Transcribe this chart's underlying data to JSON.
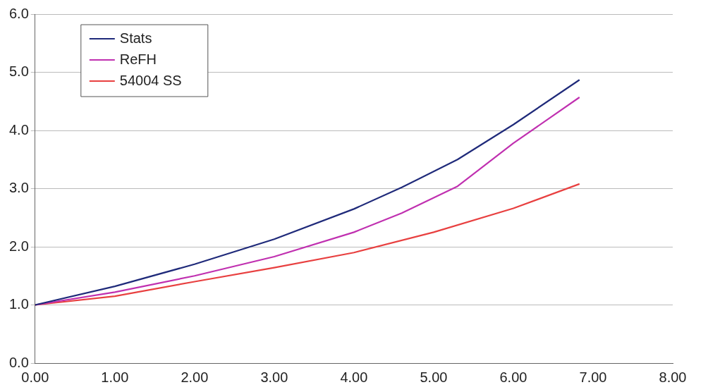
{
  "chart_data": {
    "type": "line",
    "xlim": [
      0,
      8
    ],
    "xticks": [
      {
        "value": 0,
        "label": "0.00"
      },
      {
        "value": 1,
        "label": "1.00"
      },
      {
        "value": 2,
        "label": "2.00"
      },
      {
        "value": 3,
        "label": "3.00"
      },
      {
        "value": 4,
        "label": "4.00"
      },
      {
        "value": 5,
        "label": "5.00"
      },
      {
        "value": 6,
        "label": "6.00"
      },
      {
        "value": 7,
        "label": "7.00"
      },
      {
        "value": 8,
        "label": "8.00"
      }
    ],
    "ylim": [
      0,
      6
    ],
    "yticks": [
      {
        "value": 0,
        "label": "0.0"
      },
      {
        "value": 1,
        "label": "1.0"
      },
      {
        "value": 2,
        "label": "2.0"
      },
      {
        "value": 3,
        "label": "3.0"
      },
      {
        "value": 4,
        "label": "4.0"
      },
      {
        "value": 5,
        "label": "5.0"
      },
      {
        "value": 6,
        "label": "6.0"
      }
    ],
    "grid": "y",
    "legend": "top left",
    "marker": "none",
    "line_style": "solid",
    "series": [
      {
        "name": "Stats",
        "color": "#1f2a7a",
        "x": [
          0,
          1,
          2,
          3,
          4,
          4.6,
          5.3,
          6,
          6.83
        ],
        "values": [
          1,
          1.32,
          1.7,
          2.13,
          2.65,
          3.02,
          3.5,
          4.1,
          4.87
        ]
      },
      {
        "name": "ReFH",
        "color": "#c030b0",
        "x": [
          0,
          1,
          2,
          3,
          4,
          4.6,
          5.3,
          6,
          6.83
        ],
        "values": [
          1,
          1.22,
          1.5,
          1.83,
          2.25,
          2.58,
          3.04,
          3.78,
          4.57
        ]
      },
      {
        "name": "54004 SS",
        "color": "#e84040",
        "x": [
          0,
          1,
          2,
          3,
          4,
          5,
          6,
          6.83
        ],
        "values": [
          1,
          1.15,
          1.4,
          1.64,
          1.9,
          2.25,
          2.66,
          3.08
        ]
      }
    ]
  }
}
